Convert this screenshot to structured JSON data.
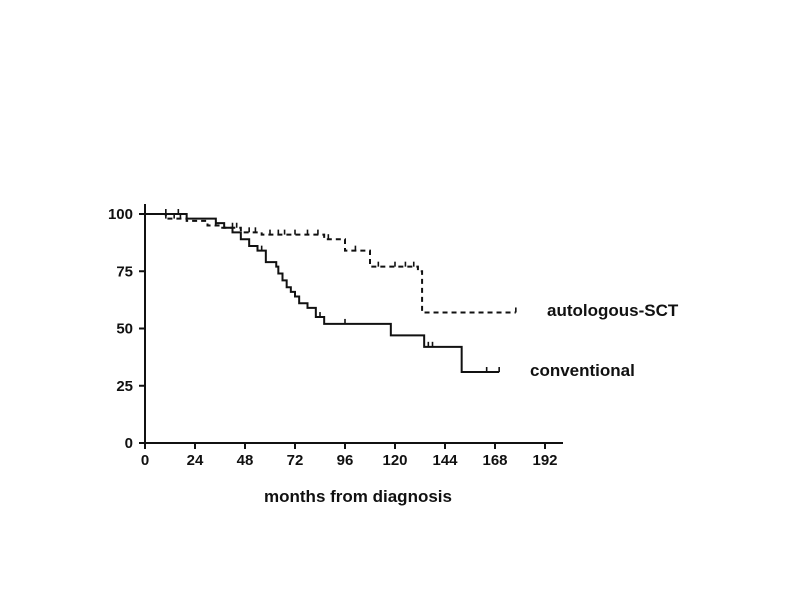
{
  "chart_data": {
    "type": "line",
    "title": "",
    "xlabel": "months from diagnosis",
    "ylabel": "",
    "xlim": [
      0,
      192
    ],
    "ylim": [
      0,
      100
    ],
    "x_ticks": [
      0,
      24,
      48,
      72,
      96,
      120,
      144,
      168,
      192
    ],
    "y_ticks": [
      0,
      25,
      50,
      75,
      100
    ],
    "grid": false,
    "legend": "inline labels at right end of each curve",
    "series": [
      {
        "name": "autologous-SCT",
        "style": "dashed",
        "color": "#111111",
        "x": [
          0,
          10,
          20,
          30,
          36,
          46,
          56,
          86,
          96,
          105,
          108,
          131,
          133,
          178
        ],
        "y": [
          100,
          98,
          97,
          95,
          94,
          92,
          91,
          89,
          84,
          84,
          77,
          75,
          57,
          57
        ],
        "censor_x": [
          10,
          14,
          17,
          34,
          42,
          44,
          50,
          53,
          60,
          64,
          67,
          72,
          78,
          83,
          88,
          101,
          112,
          120,
          125,
          129,
          178
        ]
      },
      {
        "name": "conventional",
        "style": "solid",
        "color": "#111111",
        "x": [
          0,
          18,
          20,
          34,
          38,
          42,
          46,
          50,
          54,
          58,
          63,
          64,
          66,
          68,
          70,
          72,
          74,
          78,
          82,
          86,
          90,
          114,
          118,
          130,
          134,
          144,
          152,
          170
        ],
        "y": [
          100,
          100,
          98,
          96,
          94,
          92,
          89,
          86,
          84,
          79,
          77,
          74,
          71,
          68,
          66,
          64,
          61,
          59,
          55,
          52,
          52,
          52,
          47,
          47,
          42,
          42,
          31,
          31
        ],
        "censor_x": [
          10,
          16,
          56,
          84,
          96,
          136,
          138,
          164,
          170
        ]
      }
    ]
  }
}
